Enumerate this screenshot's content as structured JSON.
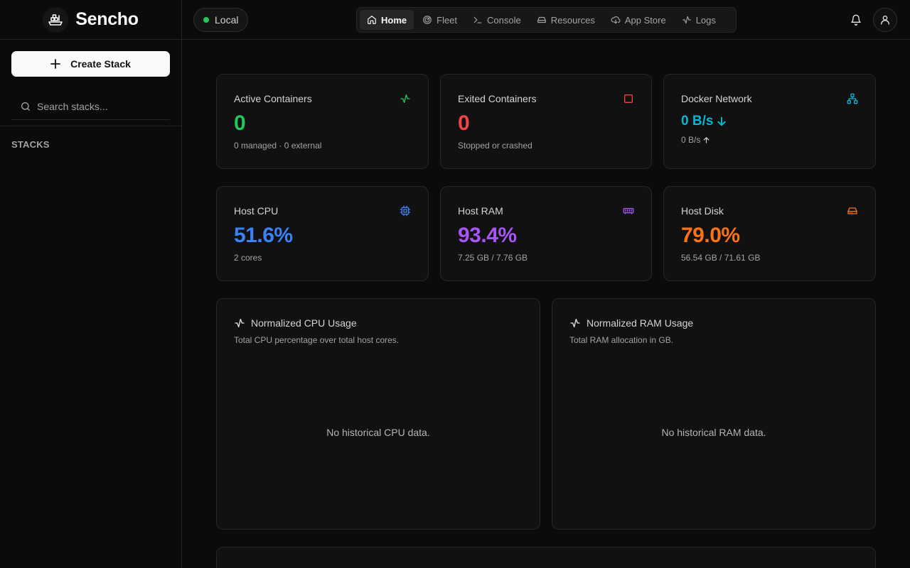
{
  "brand": {
    "name": "Sencho",
    "logo_icon": "boat-logo-icon"
  },
  "sidebar": {
    "create_label": "Create Stack",
    "search_placeholder": "Search stacks...",
    "section_label": "STACKS"
  },
  "topbar": {
    "node_label": "Local",
    "node_status_color": "#22c55e",
    "nav": [
      {
        "label": "Home",
        "icon": "home-icon",
        "active": true
      },
      {
        "label": "Fleet",
        "icon": "radar-icon"
      },
      {
        "label": "Console",
        "icon": "terminal-icon"
      },
      {
        "label": "Resources",
        "icon": "hard-drive-icon"
      },
      {
        "label": "App Store",
        "icon": "cloud-download-icon"
      },
      {
        "label": "Logs",
        "icon": "activity-icon"
      }
    ]
  },
  "stats": {
    "active": {
      "label": "Active Containers",
      "value": "0",
      "sub": "0 managed · 0 external",
      "color": "#22c55e"
    },
    "exited": {
      "label": "Exited Containers",
      "value": "0",
      "sub": "Stopped or crashed",
      "color": "#ef4444"
    },
    "network": {
      "label": "Docker Network",
      "value": "0 B/s",
      "sub": "0 B/s",
      "color": "#06b6d4"
    },
    "cpu": {
      "label": "Host CPU",
      "value": "51.6%",
      "sub": "2 cores",
      "color": "#3b82f6"
    },
    "ram": {
      "label": "Host RAM",
      "value": "93.4%",
      "sub": "7.25 GB / 7.76 GB",
      "color": "#a855f7"
    },
    "disk": {
      "label": "Host Disk",
      "value": "79.0%",
      "sub": "56.54 GB / 71.61 GB",
      "color": "#f97316"
    }
  },
  "charts": {
    "cpu": {
      "title": "Normalized CPU Usage",
      "desc": "Total CPU percentage over total host cores.",
      "empty": "No historical CPU data."
    },
    "ram": {
      "title": "Normalized RAM Usage",
      "desc": "Total RAM allocation in GB.",
      "empty": "No historical RAM data."
    }
  }
}
